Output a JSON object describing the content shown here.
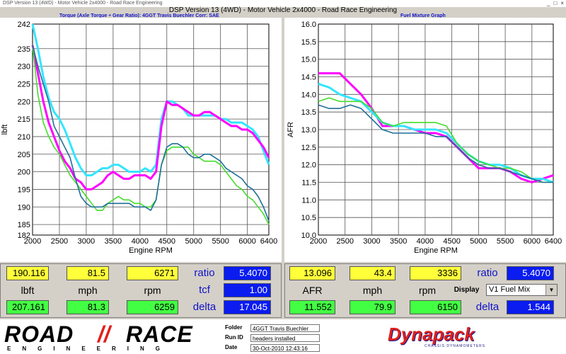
{
  "window": {
    "title": "DSP Version 13 (4WD) - Motor Vehicle 2x4000 - Road Race Engineering"
  },
  "main_title": "DSP Version 13 (4WD) - Motor Vehicle 2x4000 - Road Race Engineering",
  "left_header": "Torque (Axle Torque ÷ Gear Ratio): 4GGT Travis Buechler     Corr: SAE",
  "right_header": "Fuel Mixture Graph",
  "colors": {
    "magenta": "#ff00ff",
    "cyan": "#33e5ff",
    "green": "#44dd2a",
    "teal": "#1f6f9a",
    "yellow_box": "#ffff3a",
    "green_box": "#43ff43",
    "blue_box": "#0a1cf0"
  },
  "chart_data": [
    {
      "type": "line",
      "title": "",
      "xlabel": "Engine RPM",
      "ylabel": "lbft",
      "xlim": [
        2000,
        6400
      ],
      "ylim": [
        182,
        242
      ],
      "xticks": [
        "2000",
        "2500",
        "3000",
        "3500",
        "4000",
        "4500",
        "5000",
        "5500",
        "6000",
        "6400"
      ],
      "yticks": [
        "185",
        "190",
        "195",
        "200",
        "205",
        "210",
        "215",
        "220",
        "225",
        "230",
        "235",
        "242"
      ],
      "y_extra_tick": "182",
      "grid": true,
      "series": [
        {
          "color": "cyan",
          "x": [
            2000,
            2100,
            2200,
            2300,
            2400,
            2500,
            2600,
            2700,
            2800,
            2900,
            3000,
            3100,
            3200,
            3300,
            3400,
            3500,
            3600,
            3700,
            3800,
            3900,
            4000,
            4100,
            4200,
            4300,
            4400,
            4500,
            4600,
            4700,
            4800,
            4900,
            5000,
            5100,
            5200,
            5300,
            5400,
            5500,
            5600,
            5700,
            5800,
            5900,
            6000,
            6100,
            6200,
            6300,
            6400
          ],
          "y": [
            242,
            235,
            227,
            221,
            217,
            215,
            212,
            208,
            204,
            201,
            199,
            199,
            200,
            201,
            201,
            202,
            202,
            201,
            200,
            200,
            200,
            201,
            200,
            202,
            215,
            220,
            220,
            219,
            218,
            216,
            216,
            216,
            216,
            216,
            216,
            215,
            215,
            214,
            214,
            214,
            213,
            212,
            210,
            206,
            202
          ]
        },
        {
          "color": "magenta",
          "x": [
            2000,
            2100,
            2200,
            2300,
            2400,
            2500,
            2600,
            2700,
            2800,
            2900,
            3000,
            3100,
            3200,
            3300,
            3400,
            3500,
            3600,
            3700,
            3800,
            3900,
            4000,
            4100,
            4200,
            4300,
            4400,
            4500,
            4600,
            4700,
            4800,
            4900,
            5000,
            5100,
            5200,
            5300,
            5400,
            5500,
            5600,
            5700,
            5800,
            5900,
            6000,
            6100,
            6200,
            6300,
            6400
          ],
          "y": [
            236,
            228,
            220,
            214,
            210,
            206,
            203,
            201,
            198,
            197,
            195,
            195,
            196,
            197,
            199,
            200,
            199,
            198,
            198,
            199,
            199,
            199,
            198,
            200,
            213,
            220,
            219,
            219,
            218,
            217,
            216,
            216,
            217,
            217,
            216,
            215,
            214,
            213,
            213,
            212,
            212,
            211,
            209,
            207,
            204
          ]
        },
        {
          "color": "green",
          "x": [
            2000,
            2100,
            2200,
            2300,
            2400,
            2500,
            2600,
            2700,
            2800,
            2900,
            3000,
            3100,
            3200,
            3300,
            3400,
            3500,
            3600,
            3700,
            3800,
            3900,
            4000,
            4100,
            4200,
            4300,
            4400,
            4500,
            4600,
            4700,
            4800,
            4900,
            5000,
            5100,
            5200,
            5300,
            5400,
            5500,
            5600,
            5700,
            5800,
            5900,
            6000,
            6100,
            6200,
            6300,
            6400
          ],
          "y": [
            236,
            222,
            214,
            210,
            207,
            205,
            202,
            199,
            197,
            195,
            193,
            191,
            189,
            189,
            191,
            192,
            193,
            192,
            192,
            191,
            191,
            190,
            190,
            192,
            202,
            206,
            207,
            207,
            207,
            207,
            205,
            204,
            203,
            203,
            203,
            202,
            200,
            198,
            196,
            195,
            193,
            192,
            190,
            188,
            185
          ]
        },
        {
          "color": "teal",
          "x": [
            2000,
            2100,
            2200,
            2300,
            2400,
            2500,
            2600,
            2700,
            2800,
            2900,
            3000,
            3100,
            3200,
            3300,
            3400,
            3500,
            3600,
            3700,
            3800,
            3900,
            4000,
            4100,
            4200,
            4300,
            4400,
            4500,
            4600,
            4700,
            4800,
            4900,
            5000,
            5100,
            5200,
            5300,
            5400,
            5500,
            5600,
            5700,
            5800,
            5900,
            6000,
            6100,
            6200,
            6300,
            6400
          ],
          "y": [
            236,
            230,
            225,
            220,
            213,
            210,
            207,
            204,
            198,
            193,
            191,
            190,
            190,
            190,
            191,
            191,
            191,
            191,
            191,
            190,
            190,
            190,
            189,
            192,
            202,
            207,
            208,
            208,
            207,
            205,
            204,
            204,
            205,
            205,
            204,
            203,
            201,
            200,
            199,
            198,
            196,
            195,
            193,
            190,
            186
          ]
        }
      ]
    },
    {
      "type": "line",
      "title": "Fuel Mixture Graph",
      "xlabel": "Engine RPM",
      "ylabel": "AFR",
      "xlim": [
        2000,
        6400
      ],
      "ylim": [
        10.0,
        16.0
      ],
      "xticks": [
        "2000",
        "2500",
        "3000",
        "3500",
        "4000",
        "4500",
        "5000",
        "5500",
        "6000",
        "6400"
      ],
      "yticks": [
        "10.0",
        "10.5",
        "11.0",
        "11.5",
        "12.0",
        "12.5",
        "13.0",
        "13.5",
        "14.0",
        "14.5",
        "15.0",
        "15.5",
        "16.0"
      ],
      "grid": true,
      "series": [
        {
          "color": "magenta",
          "x": [
            2000,
            2200,
            2400,
            2600,
            2800,
            3000,
            3200,
            3400,
            3600,
            3800,
            4000,
            4200,
            4400,
            4600,
            4800,
            5000,
            5200,
            5400,
            5600,
            5800,
            6000,
            6200,
            6400
          ],
          "y": [
            14.6,
            14.6,
            14.6,
            14.3,
            14.0,
            13.6,
            13.1,
            13.1,
            13.1,
            13.0,
            12.9,
            12.9,
            12.8,
            12.5,
            12.2,
            11.9,
            11.9,
            11.9,
            11.8,
            11.6,
            11.5,
            11.6,
            11.7
          ]
        },
        {
          "color": "cyan",
          "x": [
            2000,
            2200,
            2400,
            2600,
            2800,
            3000,
            3200,
            3400,
            3600,
            3800,
            4000,
            4200,
            4400,
            4600,
            4800,
            5000,
            5200,
            5400,
            5600,
            5800,
            6000,
            6200,
            6400
          ],
          "y": [
            14.3,
            14.2,
            14.0,
            13.9,
            13.8,
            13.5,
            13.2,
            13.1,
            13.1,
            13.0,
            13.0,
            13.0,
            12.9,
            12.6,
            12.3,
            12.1,
            12.0,
            12.0,
            11.9,
            11.7,
            11.6,
            11.6,
            11.5
          ]
        },
        {
          "color": "green",
          "x": [
            2000,
            2200,
            2400,
            2600,
            2800,
            3000,
            3200,
            3400,
            3600,
            3800,
            4000,
            4200,
            4400,
            4600,
            4800,
            5000,
            5200,
            5400,
            5600,
            5800,
            6000,
            6200,
            6400
          ],
          "y": [
            13.8,
            13.9,
            13.8,
            13.8,
            13.8,
            13.6,
            13.2,
            13.1,
            13.2,
            13.2,
            13.2,
            13.2,
            13.1,
            12.6,
            12.3,
            12.1,
            12.0,
            11.9,
            11.9,
            11.8,
            11.6,
            11.5,
            11.5
          ]
        },
        {
          "color": "teal",
          "x": [
            2000,
            2200,
            2400,
            2600,
            2800,
            3000,
            3200,
            3400,
            3600,
            3800,
            4000,
            4200,
            4400,
            4600,
            4800,
            5000,
            5200,
            5400,
            5600,
            5800,
            6000,
            6200,
            6400
          ],
          "y": [
            13.7,
            13.6,
            13.6,
            13.7,
            13.6,
            13.3,
            13.0,
            12.9,
            12.9,
            12.9,
            12.9,
            12.8,
            12.8,
            12.5,
            12.2,
            12.0,
            11.9,
            11.9,
            11.8,
            11.7,
            11.6,
            11.5,
            11.5
          ]
        }
      ]
    }
  ],
  "left_panel": {
    "row1": {
      "lbft": "190.116",
      "mph": "81.5",
      "rpm": "6271",
      "label": "ratio",
      "value": "5.4070"
    },
    "labels": {
      "a": "lbft",
      "b": "mph",
      "c": "rpm",
      "tcf_label": "tcf",
      "tcf_value": "1.00"
    },
    "row3": {
      "lbft": "207.161",
      "mph": "81.3",
      "rpm": "6259",
      "label": "delta",
      "value": "17.045"
    }
  },
  "right_panel": {
    "row1": {
      "afr": "13.096",
      "mph": "43.4",
      "rpm": "3336",
      "label": "ratio",
      "value": "5.4070"
    },
    "labels": {
      "a": "AFR",
      "b": "mph",
      "c": "rpm",
      "display_label": "Display",
      "display_value": "V1 Fuel Mix"
    },
    "row3": {
      "afr": "11.552",
      "mph": "79.9",
      "rpm": "6150",
      "label": "delta",
      "value": "1.544"
    }
  },
  "footer": {
    "logo_left_top": "ROAD",
    "logo_left_right": "RACE",
    "logo_left_bottom": "ENGINEERING",
    "folder_label": "Folder",
    "folder_value": "4GGT Travis Buechler",
    "runid_label": "Run ID",
    "runid_value": "headers installed",
    "date_label": "Date",
    "date_value": "30-Oct-2010 12:43:16",
    "brand": "Dynapack",
    "brand_sub": "CHASSIS DYNAMOMETERS"
  }
}
